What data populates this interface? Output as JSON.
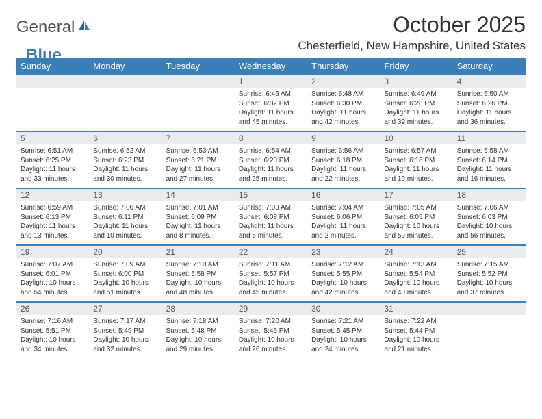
{
  "brand": {
    "part1": "General",
    "part2": "Blue"
  },
  "title": "October 2025",
  "location": "Chesterfield, New Hampshire, United States",
  "colors": {
    "header_bg": "#3b7fb8",
    "header_text": "#ffffff",
    "daynum_bg": "#e9ecef",
    "border": "#3b7fb8",
    "body_text": "#333333"
  },
  "day_labels": [
    "Sunday",
    "Monday",
    "Tuesday",
    "Wednesday",
    "Thursday",
    "Friday",
    "Saturday"
  ],
  "weeks": [
    [
      null,
      null,
      null,
      {
        "n": "1",
        "sr": "6:46 AM",
        "ss": "6:32 PM",
        "dl": "11 hours and 45 minutes."
      },
      {
        "n": "2",
        "sr": "6:48 AM",
        "ss": "6:30 PM",
        "dl": "11 hours and 42 minutes."
      },
      {
        "n": "3",
        "sr": "6:49 AM",
        "ss": "6:28 PM",
        "dl": "11 hours and 39 minutes."
      },
      {
        "n": "4",
        "sr": "6:50 AM",
        "ss": "6:26 PM",
        "dl": "11 hours and 36 minutes."
      }
    ],
    [
      {
        "n": "5",
        "sr": "6:51 AM",
        "ss": "6:25 PM",
        "dl": "11 hours and 33 minutes."
      },
      {
        "n": "6",
        "sr": "6:52 AM",
        "ss": "6:23 PM",
        "dl": "11 hours and 30 minutes."
      },
      {
        "n": "7",
        "sr": "6:53 AM",
        "ss": "6:21 PM",
        "dl": "11 hours and 27 minutes."
      },
      {
        "n": "8",
        "sr": "6:54 AM",
        "ss": "6:20 PM",
        "dl": "11 hours and 25 minutes."
      },
      {
        "n": "9",
        "sr": "6:56 AM",
        "ss": "6:18 PM",
        "dl": "11 hours and 22 minutes."
      },
      {
        "n": "10",
        "sr": "6:57 AM",
        "ss": "6:16 PM",
        "dl": "11 hours and 19 minutes."
      },
      {
        "n": "11",
        "sr": "6:58 AM",
        "ss": "6:14 PM",
        "dl": "11 hours and 16 minutes."
      }
    ],
    [
      {
        "n": "12",
        "sr": "6:59 AM",
        "ss": "6:13 PM",
        "dl": "11 hours and 13 minutes."
      },
      {
        "n": "13",
        "sr": "7:00 AM",
        "ss": "6:11 PM",
        "dl": "11 hours and 10 minutes."
      },
      {
        "n": "14",
        "sr": "7:01 AM",
        "ss": "6:09 PM",
        "dl": "11 hours and 8 minutes."
      },
      {
        "n": "15",
        "sr": "7:03 AM",
        "ss": "6:08 PM",
        "dl": "11 hours and 5 minutes."
      },
      {
        "n": "16",
        "sr": "7:04 AM",
        "ss": "6:06 PM",
        "dl": "11 hours and 2 minutes."
      },
      {
        "n": "17",
        "sr": "7:05 AM",
        "ss": "6:05 PM",
        "dl": "10 hours and 59 minutes."
      },
      {
        "n": "18",
        "sr": "7:06 AM",
        "ss": "6:03 PM",
        "dl": "10 hours and 56 minutes."
      }
    ],
    [
      {
        "n": "19",
        "sr": "7:07 AM",
        "ss": "6:01 PM",
        "dl": "10 hours and 54 minutes."
      },
      {
        "n": "20",
        "sr": "7:09 AM",
        "ss": "6:00 PM",
        "dl": "10 hours and 51 minutes."
      },
      {
        "n": "21",
        "sr": "7:10 AM",
        "ss": "5:58 PM",
        "dl": "10 hours and 48 minutes."
      },
      {
        "n": "22",
        "sr": "7:11 AM",
        "ss": "5:57 PM",
        "dl": "10 hours and 45 minutes."
      },
      {
        "n": "23",
        "sr": "7:12 AM",
        "ss": "5:55 PM",
        "dl": "10 hours and 42 minutes."
      },
      {
        "n": "24",
        "sr": "7:13 AM",
        "ss": "5:54 PM",
        "dl": "10 hours and 40 minutes."
      },
      {
        "n": "25",
        "sr": "7:15 AM",
        "ss": "5:52 PM",
        "dl": "10 hours and 37 minutes."
      }
    ],
    [
      {
        "n": "26",
        "sr": "7:16 AM",
        "ss": "5:51 PM",
        "dl": "10 hours and 34 minutes."
      },
      {
        "n": "27",
        "sr": "7:17 AM",
        "ss": "5:49 PM",
        "dl": "10 hours and 32 minutes."
      },
      {
        "n": "28",
        "sr": "7:18 AM",
        "ss": "5:48 PM",
        "dl": "10 hours and 29 minutes."
      },
      {
        "n": "29",
        "sr": "7:20 AM",
        "ss": "5:46 PM",
        "dl": "10 hours and 26 minutes."
      },
      {
        "n": "30",
        "sr": "7:21 AM",
        "ss": "5:45 PM",
        "dl": "10 hours and 24 minutes."
      },
      {
        "n": "31",
        "sr": "7:22 AM",
        "ss": "5:44 PM",
        "dl": "10 hours and 21 minutes."
      },
      null
    ]
  ],
  "labels": {
    "sunrise": "Sunrise:",
    "sunset": "Sunset:",
    "daylight": "Daylight:"
  }
}
